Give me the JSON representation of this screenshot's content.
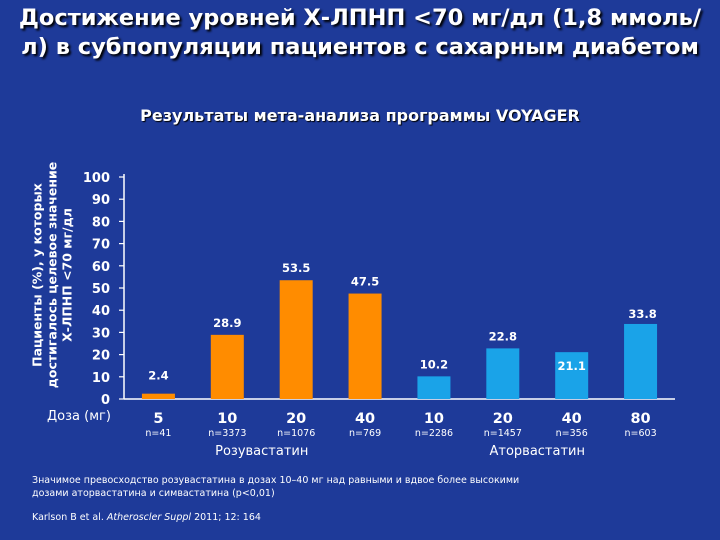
{
  "header": {
    "title": "Достижение уровней Х-ЛПНП <70 мг/дл (1,8 ммоль/л) в субпопуляции пациентов с сахарным диабетом",
    "subtitle": "Результаты мета-анализа программы VOYAGER"
  },
  "chart_data": {
    "type": "bar",
    "ylabel_line1": "Пациенты (%), у которых",
    "ylabel_line2": "достигалось целевое значение",
    "ylabel_line3": "Х-ЛПНП <70 мг/дл",
    "xlabel": "Доза (мг)",
    "ylim": [
      0,
      100
    ],
    "yticks": [
      0,
      10,
      20,
      30,
      40,
      50,
      60,
      70,
      80,
      90,
      100
    ],
    "grid": false,
    "series": [
      {
        "name": "Розувастатин",
        "color": "#ff8c00",
        "doses": [
          "5",
          "10",
          "20",
          "40"
        ],
        "n": [
          "n=41",
          "n=3373",
          "n=1076",
          "n=769"
        ],
        "values": [
          2.4,
          28.9,
          53.5,
          47.5
        ],
        "labels": [
          "2.4",
          "28.9",
          "53.5",
          "47.5"
        ]
      },
      {
        "name": "Аторвастатин",
        "color": "#1aa3e8",
        "doses": [
          "10",
          "20",
          "40",
          "80"
        ],
        "n": [
          "n=2286",
          "n=1457",
          "n=356",
          "n=603"
        ],
        "values": [
          10.2,
          22.8,
          21.1,
          33.8
        ],
        "labels": [
          "10.2",
          "22.8",
          "21.1",
          "33.8"
        ]
      }
    ]
  },
  "footer": {
    "note": "Значимое превосходство розувастатина в дозах  10–40 мг над равными и вдвое более высокими дозами аторвастатина и симвастатина (p<0,01)",
    "ref_authors": "Karlson B et al.",
    "ref_journal": "Atheroscler Suppl",
    "ref_rest": "2011; 12: 164"
  }
}
